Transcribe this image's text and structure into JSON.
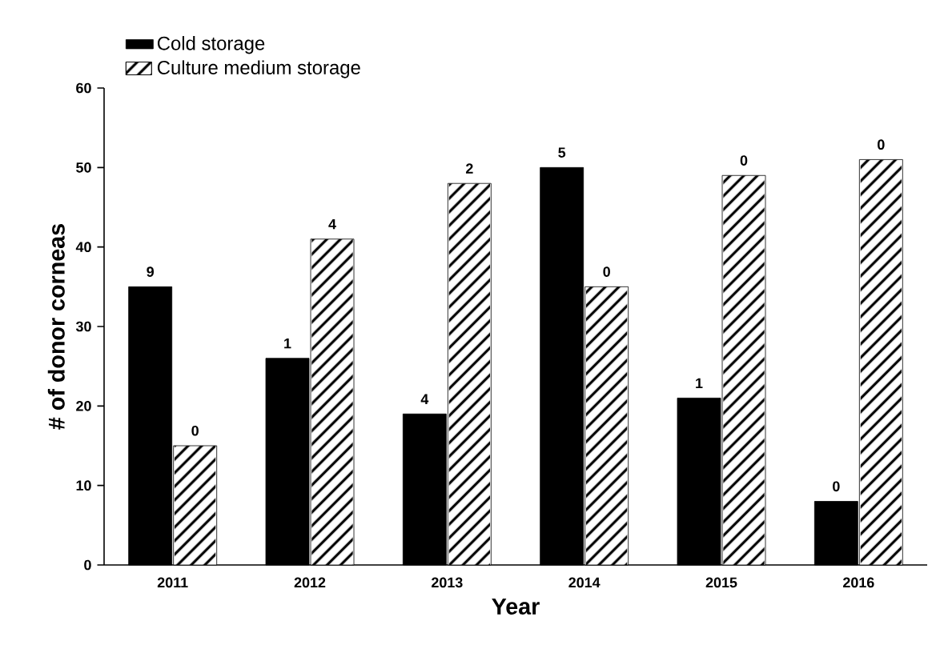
{
  "chart_data": {
    "type": "bar",
    "xlabel": "Year",
    "ylabel": "# of donor corneas",
    "categories": [
      "2011",
      "2012",
      "2013",
      "2014",
      "2015",
      "2016"
    ],
    "series": [
      {
        "name": "Cold storage",
        "color": "#000000",
        "values": [
          35,
          26,
          19,
          50,
          21,
          8
        ]
      },
      {
        "name": "Culture medium storage",
        "color": "#ffffff",
        "values": [
          15,
          41,
          48,
          35,
          49,
          51
        ]
      }
    ],
    "annotations": [
      {
        "text": "9",
        "x": "2011",
        "y": 35
      },
      {
        "text": "1",
        "x": "2012",
        "y": 26
      },
      {
        "text": "4",
        "x": "2013",
        "y": 19
      },
      {
        "text": "5",
        "x": "2014",
        "y": 50
      },
      {
        "text": "1",
        "x": "2015",
        "y": 21
      },
      {
        "text": "0",
        "x": "2016",
        "y": 8
      },
      {
        "text": "0",
        "x": "2011",
        "y": 15
      },
      {
        "text": "4",
        "x": "2012",
        "y": 41
      },
      {
        "text": "2",
        "x": "2013",
        "y": 48
      },
      {
        "text": "0",
        "x": "2014",
        "y": 35
      },
      {
        "text": "0",
        "x": "2015",
        "y": 49
      },
      {
        "text": "0",
        "x": "2016",
        "y": 51
      }
    ],
    "ylim": [
      0,
      60
    ],
    "yticks": [
      0,
      10,
      20,
      30,
      40,
      50,
      60
    ],
    "legend": "top left",
    "grid": false
  }
}
